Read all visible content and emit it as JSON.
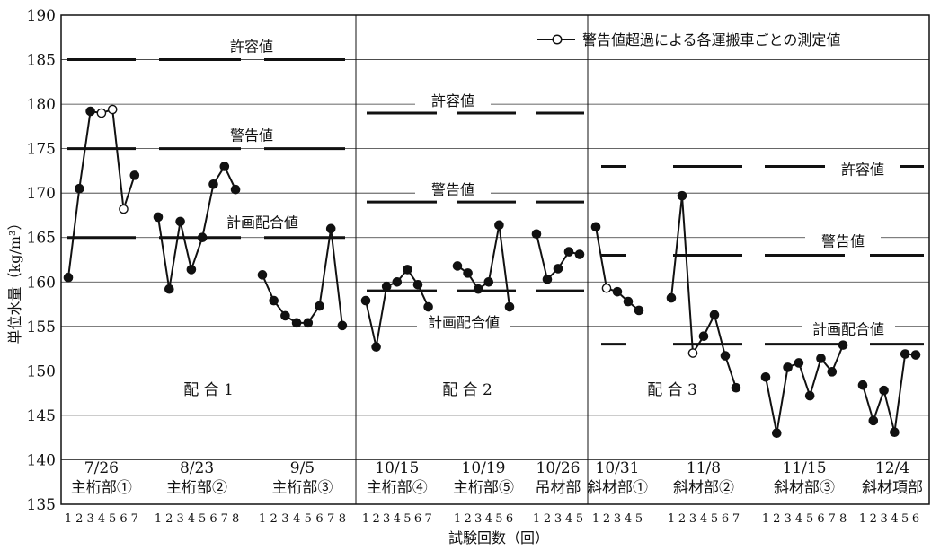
{
  "chart_data": {
    "type": "line",
    "ylabel": "単位水量（kg/m³）",
    "xlabel": "試験回数（回）",
    "ylim": [
      135,
      190
    ],
    "yticks": [
      135,
      140,
      145,
      150,
      155,
      160,
      165,
      170,
      175,
      180,
      185,
      190
    ],
    "legend": {
      "label": "警告値超過による各運搬車ごとの測定値",
      "position": "top-right"
    },
    "mix_groups": [
      {
        "label": "配 合 1",
        "groups": [
          0,
          1,
          2
        ]
      },
      {
        "label": "配 合 2",
        "groups": [
          3,
          4,
          5
        ]
      },
      {
        "label": "配 合 3",
        "groups": [
          6,
          7,
          8,
          9
        ]
      }
    ],
    "groups": [
      {
        "date": "7/26",
        "part": "主桁部①",
        "x": [
          1,
          2,
          3,
          4,
          5,
          6,
          7
        ],
        "values": [
          160.5,
          170.5,
          179.2,
          179.0,
          179.4,
          168.2,
          172.0
        ],
        "open": [
          false,
          false,
          false,
          true,
          true,
          true,
          false
        ]
      },
      {
        "date": "8/23",
        "part": "主桁部②",
        "x": [
          1,
          2,
          3,
          4,
          5,
          6,
          7,
          8
        ],
        "values": [
          167.3,
          159.2,
          166.8,
          161.4,
          165.0,
          171.0,
          173.0,
          170.4
        ],
        "open": [
          false,
          false,
          false,
          false,
          false,
          false,
          false,
          false
        ]
      },
      {
        "date": "9/5",
        "part": "主桁部③",
        "x": [
          1,
          2,
          3,
          4,
          5,
          6,
          7,
          8
        ],
        "values": [
          160.8,
          157.9,
          156.2,
          155.4,
          155.4,
          157.3,
          166.0,
          155.1
        ],
        "open": [
          false,
          false,
          false,
          false,
          false,
          false,
          false,
          false
        ]
      },
      {
        "date": "10/15",
        "part": "主桁部④",
        "x": [
          1,
          2,
          3,
          4,
          5,
          6,
          7
        ],
        "values": [
          157.9,
          152.7,
          159.5,
          160.0,
          161.4,
          159.7,
          157.2
        ],
        "open": [
          false,
          false,
          false,
          false,
          false,
          false,
          false
        ]
      },
      {
        "date": "10/19",
        "part": "主桁部⑤",
        "x": [
          1,
          2,
          3,
          4,
          5,
          6
        ],
        "values": [
          161.8,
          161.0,
          159.2,
          160.0,
          166.4,
          157.2
        ],
        "open": [
          false,
          false,
          false,
          false,
          false,
          false
        ]
      },
      {
        "date": "10/26",
        "part": "吊材部",
        "x": [
          1,
          2,
          3,
          4,
          5
        ],
        "values": [
          165.4,
          160.3,
          161.5,
          163.4,
          163.1
        ],
        "open": [
          false,
          false,
          false,
          false,
          false
        ]
      },
      {
        "date": "10/31",
        "part": "斜材部①",
        "x": [
          1,
          2,
          3,
          4,
          5
        ],
        "values": [
          166.2,
          159.3,
          158.9,
          157.8,
          156.8
        ],
        "open": [
          false,
          true,
          false,
          false,
          false
        ]
      },
      {
        "date": "11/8",
        "part": "斜材部②",
        "x": [
          1,
          2,
          3,
          4,
          5,
          6,
          7
        ],
        "values": [
          158.2,
          169.7,
          152.0,
          153.9,
          156.3,
          151.7,
          148.1
        ],
        "open": [
          false,
          false,
          true,
          false,
          false,
          false,
          false
        ]
      },
      {
        "date": "11/15",
        "part": "斜材部③",
        "x": [
          1,
          2,
          3,
          4,
          5,
          6,
          7,
          8
        ],
        "values": [
          149.3,
          143.0,
          150.4,
          150.9,
          147.2,
          151.4,
          149.9,
          152.9
        ],
        "open": [
          false,
          false,
          false,
          false,
          false,
          false,
          false,
          false
        ]
      },
      {
        "date": "12/4",
        "part": "斜材項部",
        "x": [
          1,
          2,
          3,
          4,
          5,
          6
        ],
        "values": [
          148.4,
          144.4,
          147.8,
          143.1,
          151.9,
          151.8
        ],
        "open": [
          false,
          false,
          false,
          false,
          false,
          false
        ]
      }
    ],
    "limits": [
      {
        "mix": "配 合 1",
        "kyoyo": 185,
        "keikoku": 175,
        "keikaku": 165
      },
      {
        "mix": "配 合 2",
        "kyoyo": 179,
        "keikoku": 169,
        "keikaku": 159
      },
      {
        "mix": "配 合 3",
        "kyoyo": 173,
        "keikoku": 163,
        "keikaku": 153
      }
    ],
    "line_labels": {
      "kyoyo": "許容値",
      "keikoku": "警告値",
      "keikaku": "計画配合値"
    }
  }
}
